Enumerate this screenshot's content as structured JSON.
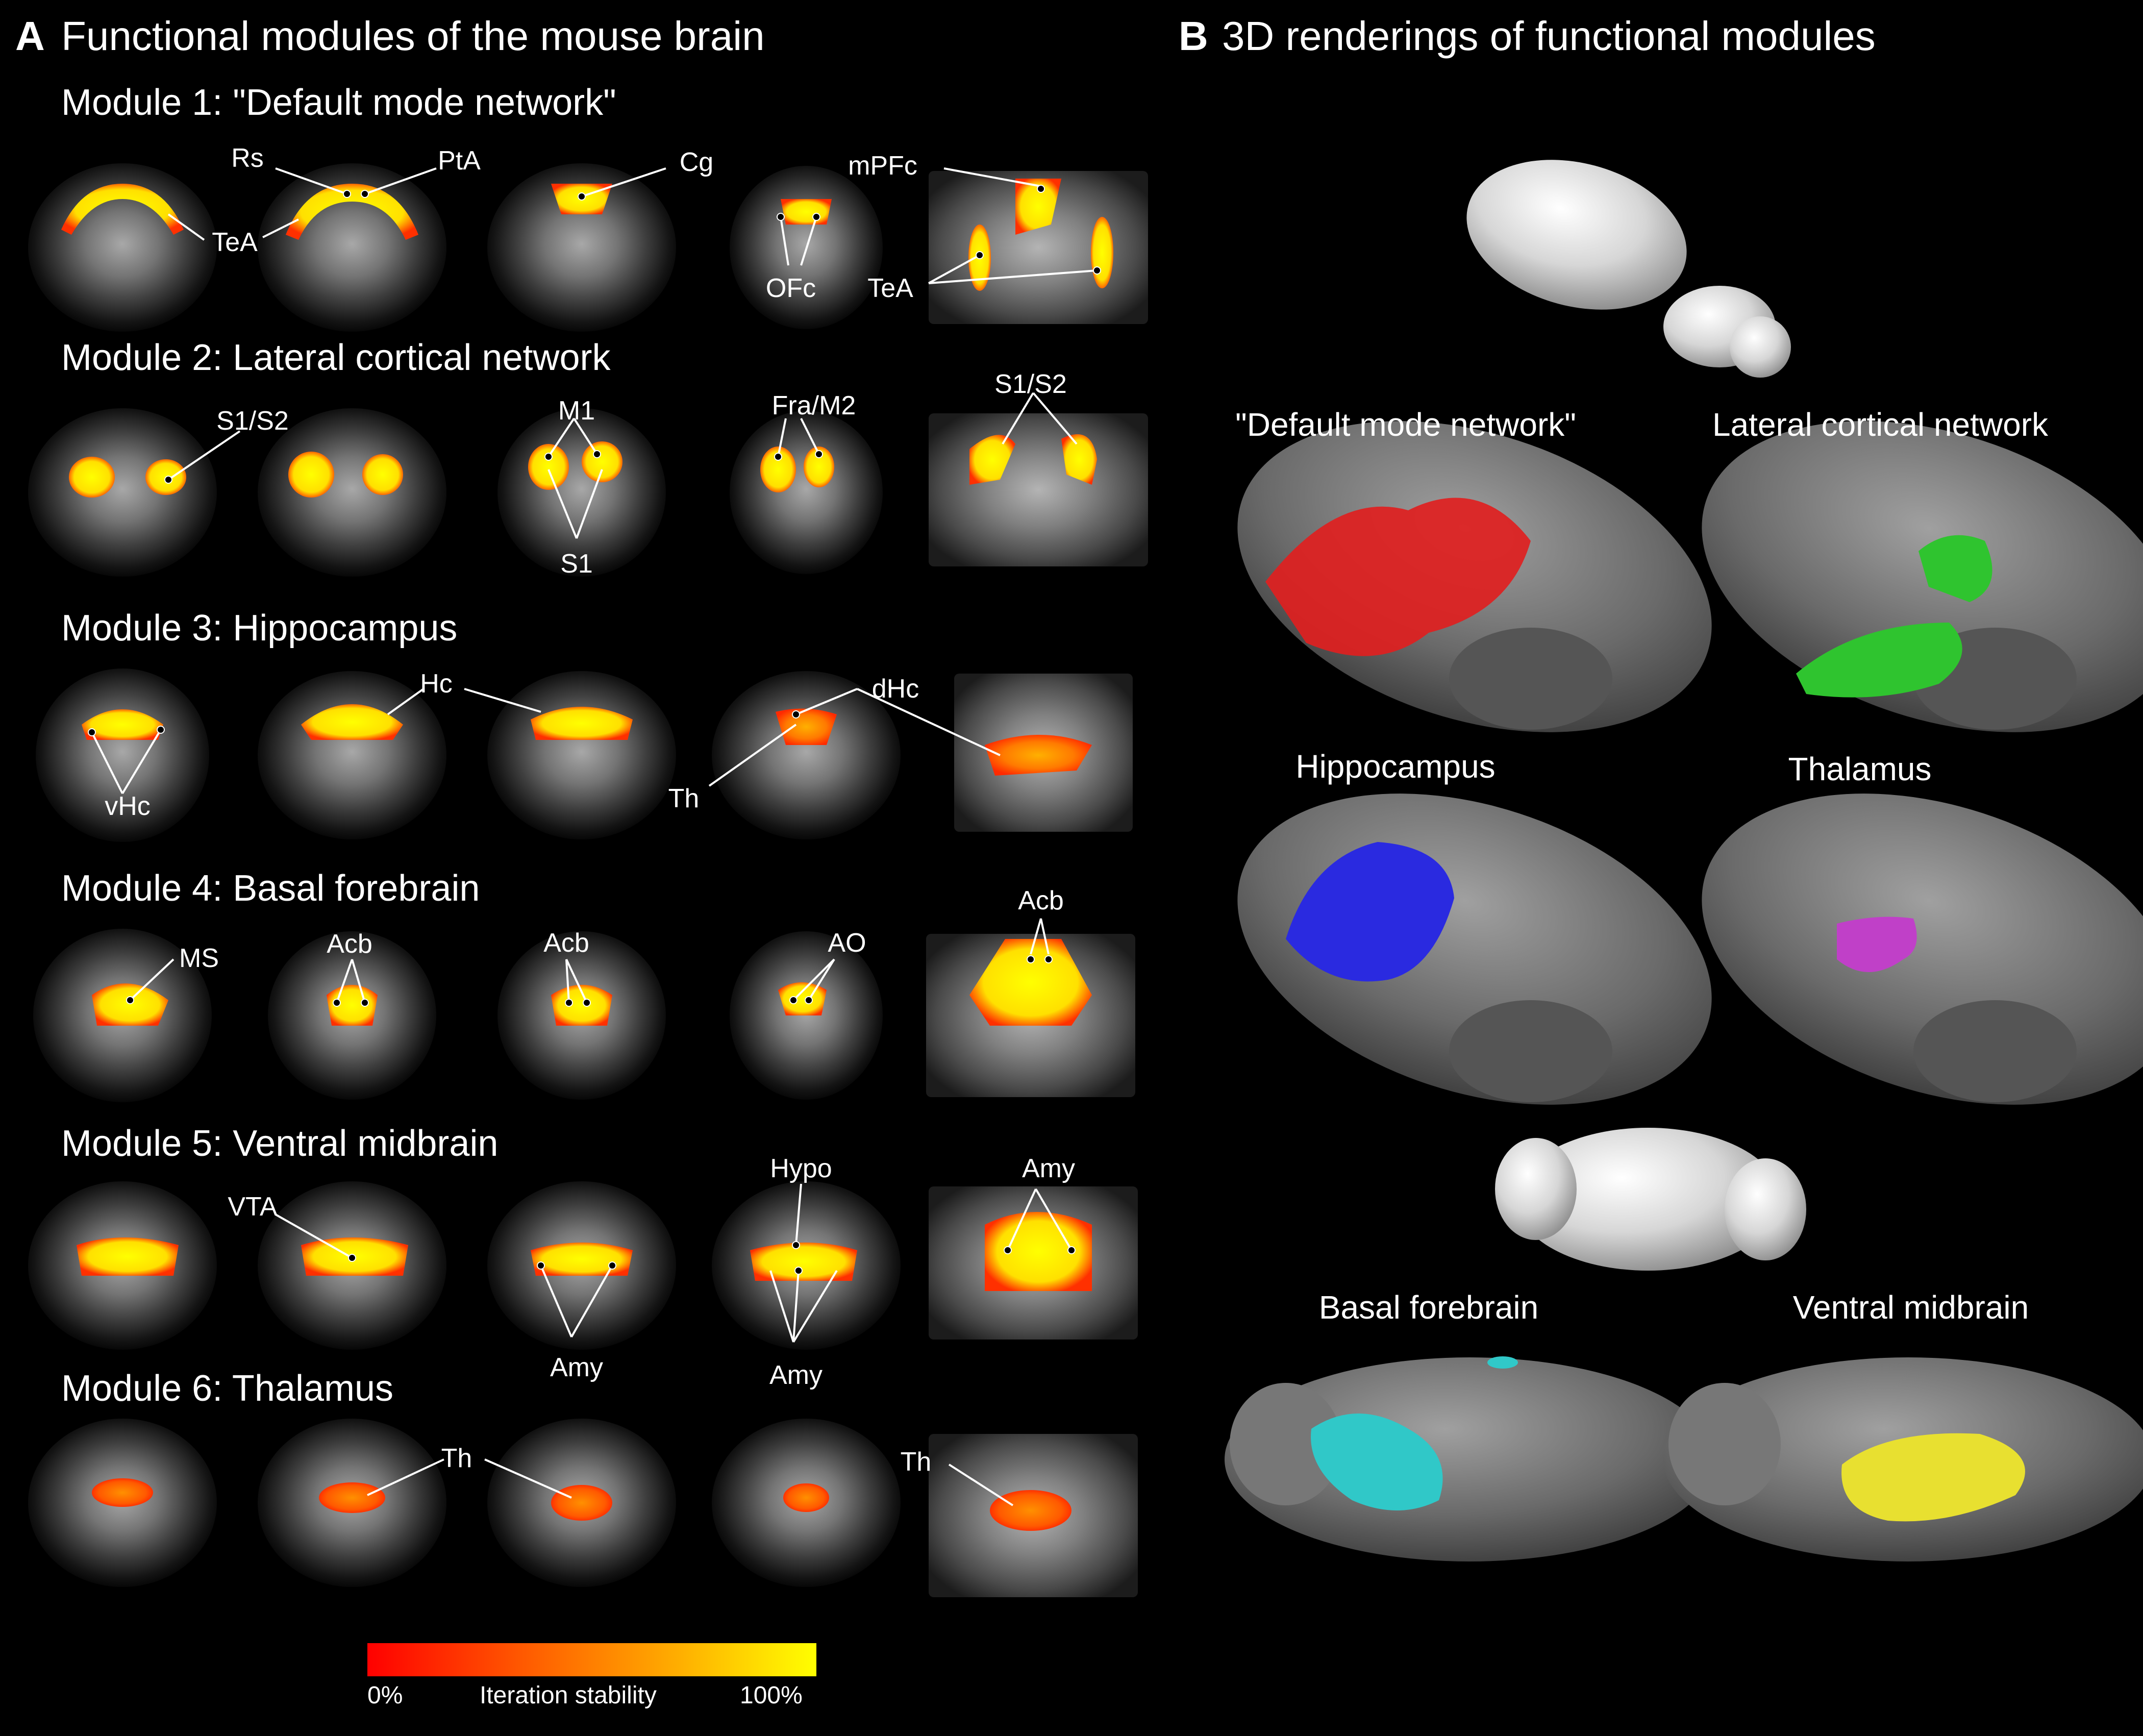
{
  "panelA": {
    "letter": "A",
    "title": "Functional modules of the mouse brain",
    "modules": [
      {
        "title": "Module 1: \"Default mode network\"",
        "labels": [
          "Rs",
          "PtA",
          "Cg",
          "mPFc",
          "TeA",
          "TeA",
          "OFc"
        ]
      },
      {
        "title": "Module 2: Lateral cortical network",
        "labels": [
          "S1/S2",
          "M1",
          "Fra/M2",
          "S1/S2",
          "S1"
        ]
      },
      {
        "title": "Module 3: Hippocampus",
        "labels": [
          "Hc",
          "dHc",
          "vHc",
          "Th"
        ]
      },
      {
        "title": "Module 4: Basal forebrain",
        "labels": [
          "MS",
          "Acb",
          "Acb",
          "AO",
          "Acb"
        ]
      },
      {
        "title": "Module 5: Ventral midbrain",
        "labels": [
          "VTA",
          "Hypo",
          "Amy",
          "Amy",
          "Amy"
        ]
      },
      {
        "title": "Module 6: Thalamus",
        "labels": [
          "Th",
          "Th"
        ]
      }
    ],
    "colorbar": {
      "min_label": "0%",
      "title": "Iteration stability",
      "max_label": "100%"
    }
  },
  "panelB": {
    "letter": "B",
    "title": "3D renderings of functional modules",
    "renderings": [
      {
        "name": "\"Default mode network\"",
        "color": "#e02020"
      },
      {
        "name": "Lateral cortical network",
        "color": "#2fc42f"
      },
      {
        "name": "Hippocampus",
        "color": "#2a2ae0"
      },
      {
        "name": "Thalamus",
        "color": "#c040c8"
      },
      {
        "name": "Basal forebrain",
        "color": "#30c8c8"
      },
      {
        "name": "Ventral midbrain",
        "color": "#e8e030"
      }
    ]
  },
  "colors": {
    "low": "#ff0000",
    "mid": "#ff7a00",
    "high": "#ffff00",
    "brain_grey": "#7a7a7a"
  }
}
